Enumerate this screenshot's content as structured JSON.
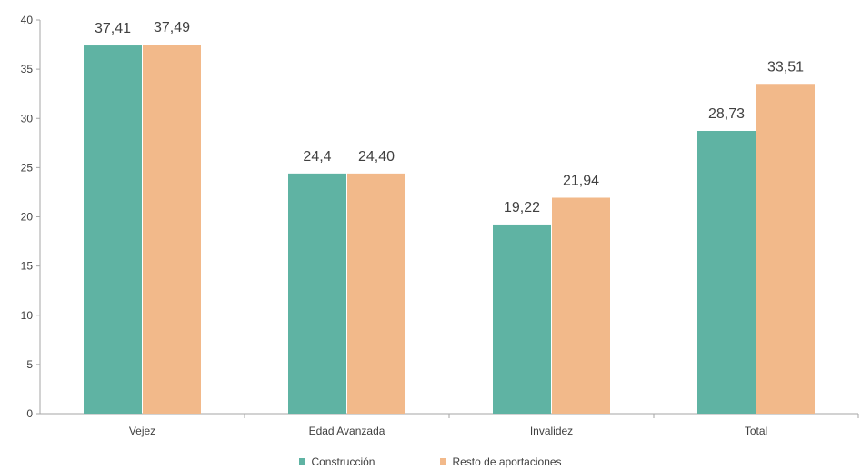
{
  "chart_data": {
    "type": "bar",
    "categories": [
      "Vejez",
      "Edad Avanzada",
      "Invalidez",
      "Total"
    ],
    "series": [
      {
        "name": "Construcción",
        "values": [
          37.41,
          24.4,
          19.22,
          28.73
        ],
        "labels": [
          "37,41",
          "24,4",
          "19,22",
          "28,73"
        ],
        "color": "#5fb3a3"
      },
      {
        "name": "Resto de aportaciones",
        "values": [
          37.49,
          24.4,
          21.94,
          33.51
        ],
        "labels": [
          "37,49",
          "24,40",
          "21,94",
          "33,51"
        ],
        "color": "#f2b98a"
      }
    ],
    "ylim": [
      0,
      40
    ],
    "yticks": [
      0,
      5,
      10,
      15,
      20,
      25,
      30,
      35,
      40
    ],
    "grid": false,
    "legend_position": "bottom"
  }
}
